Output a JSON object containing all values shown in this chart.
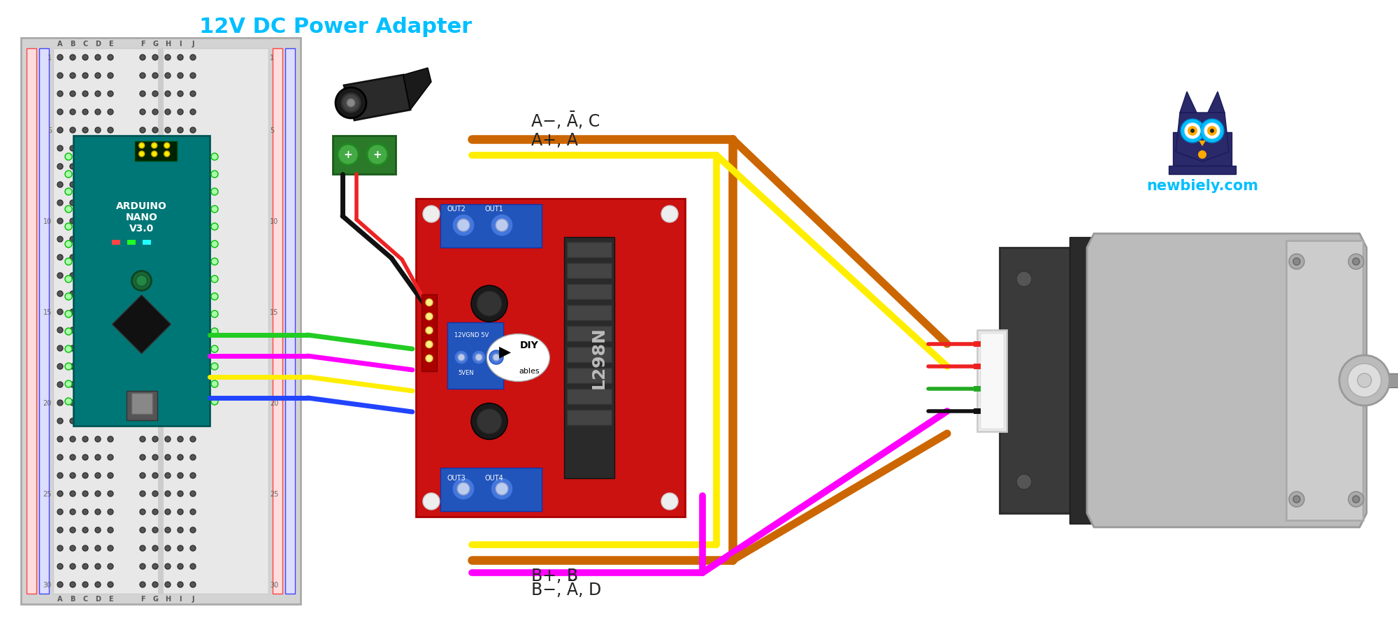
{
  "title": "12V DC Power Adapter",
  "title_color": "#00BFFF",
  "title_fontsize": 22,
  "bg_color": "#FFFFFF",
  "label_a_minus": "A−, Ā, C",
  "label_a_plus": "A+, A",
  "label_b_minus": "B−, Ă, D",
  "label_b_plus": "B+, B",
  "watermark": "newbiely.com",
  "wire_green": "#22CC22",
  "wire_magenta": "#FF00FF",
  "wire_yellow": "#FFEE00",
  "wire_blue": "#2244FF",
  "wire_black": "#111111",
  "wire_red": "#EE2222",
  "wire_orange": "#CC6600",
  "motor_wire_colors": [
    "#EE2222",
    "#EE2222",
    "#22AA22",
    "#111111"
  ]
}
